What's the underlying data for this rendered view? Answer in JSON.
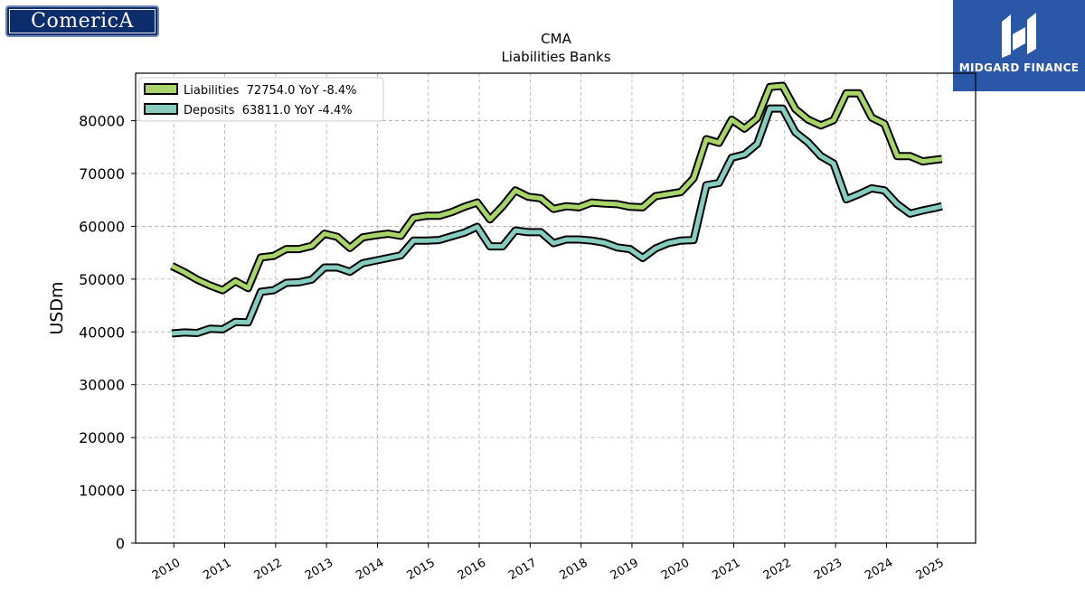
{
  "brand": {
    "company": "ComericA",
    "provider": "MIDGARD FINANCE"
  },
  "colors": {
    "liabilities": "#a8d46a",
    "deposits": "#86cdc0",
    "outline": "#000000",
    "grid": "#b0b0b0",
    "provider_bg": "#2b57a8",
    "company_bg": "#0c2c6b"
  },
  "chart_data": {
    "type": "line",
    "title": "CMA",
    "subtitle": "Liabilities Banks",
    "ylabel": "USDm",
    "xlabel": "",
    "ylim": [
      0,
      89000
    ],
    "xlim": [
      2009.25,
      2025.75
    ],
    "grid": true,
    "legend_position": "top-left",
    "yticks": [
      0,
      10000,
      20000,
      30000,
      40000,
      50000,
      60000,
      70000,
      80000
    ],
    "ytick_labels": [
      "0",
      "10000",
      "20000",
      "30000",
      "40000",
      "50000",
      "60000",
      "70000",
      "80000"
    ],
    "xticks": [
      2010,
      2011,
      2012,
      2013,
      2014,
      2015,
      2016,
      2017,
      2018,
      2019,
      2020,
      2021,
      2022,
      2023,
      2024,
      2025
    ],
    "xtick_labels": [
      "2010",
      "2011",
      "2012",
      "2013",
      "2014",
      "2015",
      "2016",
      "2017",
      "2018",
      "2019",
      "2020",
      "2021",
      "2022",
      "2023",
      "2024",
      "2025"
    ],
    "x": [
      2009.96,
      2010.21,
      2010.46,
      2010.71,
      2010.96,
      2011.21,
      2011.46,
      2011.71,
      2011.96,
      2012.21,
      2012.46,
      2012.71,
      2012.96,
      2013.21,
      2013.46,
      2013.71,
      2013.96,
      2014.21,
      2014.46,
      2014.71,
      2014.96,
      2015.21,
      2015.46,
      2015.71,
      2015.96,
      2016.21,
      2016.46,
      2016.71,
      2016.96,
      2017.21,
      2017.46,
      2017.71,
      2017.96,
      2018.21,
      2018.46,
      2018.71,
      2018.96,
      2019.21,
      2019.46,
      2019.71,
      2019.96,
      2020.21,
      2020.46,
      2020.71,
      2020.96,
      2021.21,
      2021.46,
      2021.71,
      2021.96,
      2022.21,
      2022.46,
      2022.71,
      2022.96,
      2023.21,
      2023.46,
      2023.71,
      2023.96,
      2024.21,
      2024.46,
      2024.71,
      2024.96,
      2025.09
    ],
    "series": [
      {
        "name": "Liabilities",
        "legend_label": "Liabilities  72754.0 YoY -8.4%",
        "values": [
          52500,
          51300,
          49900,
          48800,
          47900,
          49600,
          48300,
          54100,
          54400,
          55700,
          55700,
          56300,
          58600,
          58000,
          55900,
          57900,
          58300,
          58600,
          58200,
          61600,
          62000,
          62000,
          62700,
          63700,
          64500,
          61300,
          63800,
          66800,
          65600,
          65300,
          63300,
          63800,
          63600,
          64500,
          64300,
          64200,
          63700,
          63600,
          65700,
          66100,
          66500,
          69100,
          76500,
          75800,
          80200,
          78500,
          80500,
          86400,
          86600,
          82200,
          80200,
          79100,
          80100,
          85200,
          85200,
          80600,
          79400,
          73300,
          73300,
          72300,
          72600,
          72754
        ]
      },
      {
        "name": "Deposits",
        "legend_label": "Deposits  63811.0 YoY -4.4%",
        "values": [
          39700,
          39900,
          39800,
          40600,
          40500,
          41900,
          41800,
          47600,
          47900,
          49300,
          49400,
          49900,
          52200,
          52200,
          51400,
          53000,
          53500,
          54000,
          54500,
          57300,
          57300,
          57400,
          58100,
          58800,
          59900,
          56200,
          56200,
          59200,
          58900,
          58900,
          56800,
          57500,
          57500,
          57300,
          56900,
          56000,
          55700,
          54000,
          55800,
          56800,
          57300,
          57400,
          67800,
          68200,
          73000,
          73600,
          75600,
          82300,
          82300,
          77800,
          75900,
          73300,
          71900,
          65100,
          66100,
          67200,
          66800,
          64200,
          62400,
          63000,
          63500,
          63811
        ]
      }
    ]
  }
}
